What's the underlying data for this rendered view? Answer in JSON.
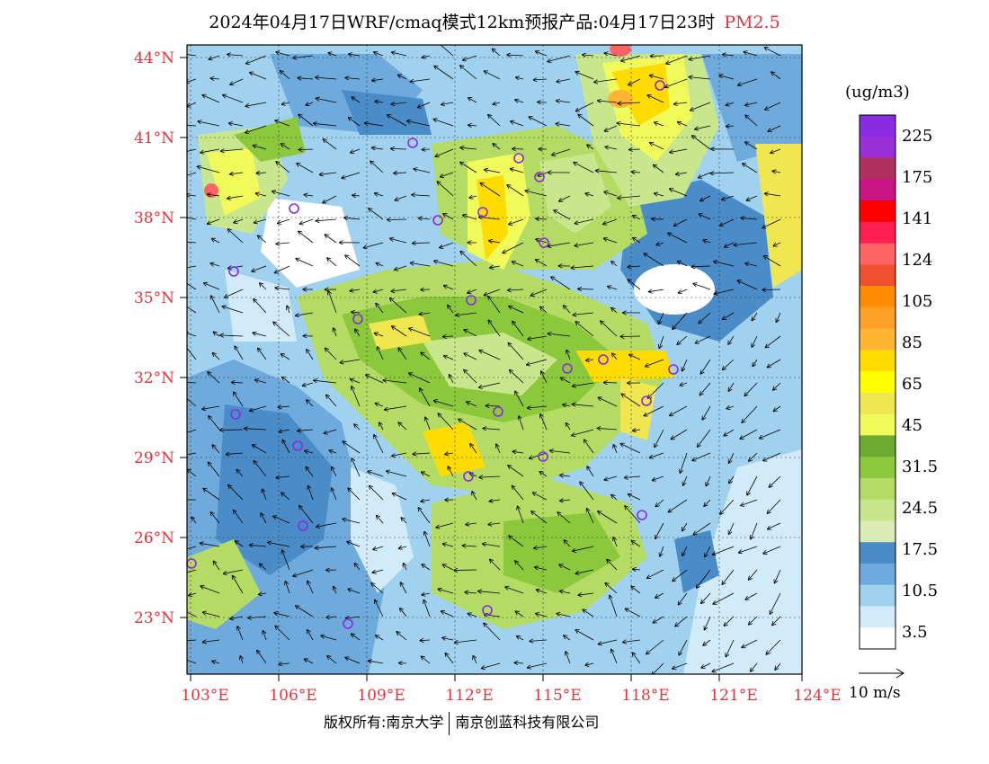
{
  "title": {
    "main": "2024年04月17日WRF/cmaq模式12km预报产品:04月17日23时",
    "pollutant": "PM2.5"
  },
  "latitude_labels": [
    "44°N",
    "41°N",
    "38°N",
    "35°N",
    "32°N",
    "29°N",
    "26°N",
    "23°N"
  ],
  "longitude_labels": [
    "103°E",
    "106°E",
    "109°E",
    "112°E",
    "115°E",
    "118°E",
    "121°E",
    "124°E"
  ],
  "legend": {
    "unit": "(ug/m3)",
    "values": [
      "225",
      "175",
      "141",
      "124",
      "105",
      "85",
      "65",
      "45",
      "31.5",
      "24.5",
      "17.5",
      "10.5",
      "3.5"
    ],
    "colors": [
      "#8a2be2",
      "#9b30d9",
      "#b03060",
      "#c71585",
      "#ff0000",
      "#ff1e50",
      "#ff6464",
      "#f0502d",
      "#ff8c00",
      "#ffa028",
      "#ffb432",
      "#ffdc00",
      "#ffff00",
      "#f0e650",
      "#f0fa5a",
      "#6eaa32",
      "#8cc83c",
      "#b4dc64",
      "#c8e68c",
      "#dcebb4",
      "#4a8cc8",
      "#6eaadc",
      "#a0d2f0",
      "#d2ebfa",
      "#ffffff"
    ]
  },
  "wind_scale": {
    "label": "10 m/s"
  },
  "footer": {
    "copyright": "版权所有:南京大学",
    "company": "南京创蓝科技有限公司"
  }
}
